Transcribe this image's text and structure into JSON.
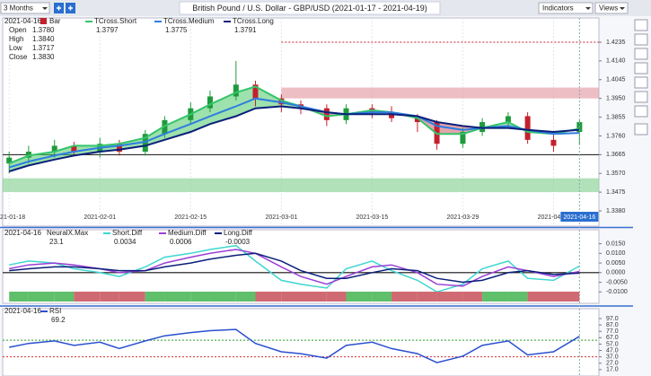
{
  "toolbar": {
    "range": "3 Months",
    "indicators": "Indicators",
    "views": "Views"
  },
  "chart_data": [
    {
      "type": "candlestick",
      "title": "British Pound / U.S. Dollar - GBP/USD (2021-01-17 - 2021-04-19)",
      "cursor_date": "2021-04-16",
      "x": [
        "2021-01-18",
        "2021-01-21",
        "2021-01-25",
        "2021-01-28",
        "2021-02-01",
        "2021-02-04",
        "2021-02-08",
        "2021-02-11",
        "2021-02-15",
        "2021-02-18",
        "2021-02-22",
        "2021-02-25",
        "2021-03-01",
        "2021-03-04",
        "2021-03-08",
        "2021-03-11",
        "2021-03-15",
        "2021-03-18",
        "2021-03-22",
        "2021-03-25",
        "2021-03-29",
        "2021-04-01",
        "2021-04-05",
        "2021-04-08",
        "2021-04-12",
        "2021-04-16"
      ],
      "xlim": [
        "2021-01-17",
        "2021-04-19"
      ],
      "xticks": [
        "2021-01-18",
        "2021-02-01",
        "2021-02-15",
        "2021-03-01",
        "2021-03-15",
        "2021-03-29",
        "2021-04-12"
      ],
      "ylim": [
        1.338,
        1.4335
      ],
      "yticks": [
        {
          "value": 1.338,
          "label": "1.3380"
        },
        1.3475,
        {
          "value": 1.357,
          "label": "1.3570"
        },
        1.3665,
        {
          "value": 1.376,
          "label": "1.3760"
        },
        1.3855,
        {
          "value": 1.395,
          "label": "1.3950"
        },
        1.4045,
        {
          "value": 1.414,
          "label": "1.4140"
        },
        1.4235
      ],
      "grid": true,
      "ohlc": {
        "name": "Bar",
        "up_color": "#1e9b3c",
        "down_color": "#c4202c",
        "open": [
          1.362,
          1.365,
          1.368,
          1.371,
          1.368,
          1.372,
          1.368,
          1.377,
          1.384,
          1.39,
          1.396,
          1.402,
          1.395,
          1.392,
          1.39,
          1.384,
          1.39,
          1.388,
          1.385,
          1.383,
          1.372,
          1.378,
          1.383,
          1.386,
          1.374,
          1.378
        ],
        "high": [
          1.368,
          1.371,
          1.374,
          1.373,
          1.375,
          1.374,
          1.379,
          1.386,
          1.393,
          1.399,
          1.414,
          1.404,
          1.397,
          1.394,
          1.392,
          1.392,
          1.392,
          1.391,
          1.387,
          1.384,
          1.38,
          1.385,
          1.388,
          1.388,
          1.378,
          1.384
        ],
        "low": [
          1.357,
          1.362,
          1.365,
          1.366,
          1.365,
          1.366,
          1.366,
          1.375,
          1.382,
          1.388,
          1.394,
          1.391,
          1.388,
          1.387,
          1.381,
          1.382,
          1.385,
          1.383,
          1.378,
          1.369,
          1.37,
          1.376,
          1.381,
          1.372,
          1.368,
          1.3717
        ],
        "close": [
          1.365,
          1.368,
          1.371,
          1.368,
          1.372,
          1.368,
          1.377,
          1.384,
          1.39,
          1.396,
          1.402,
          1.395,
          1.392,
          1.39,
          1.384,
          1.39,
          1.388,
          1.385,
          1.383,
          1.372,
          1.378,
          1.383,
          1.386,
          1.374,
          1.371,
          1.383
        ]
      },
      "readout": {
        "labels": [
          "Open",
          "High",
          "Low",
          "Close"
        ],
        "values": [
          1.378,
          1.384,
          1.3717,
          1.383
        ],
        "value_labels": [
          "1.3780",
          "1.3840",
          "1.3717",
          "1.3830"
        ]
      },
      "series": [
        {
          "name": "TCross.Short",
          "color": "#35c46a",
          "values": [
            1.362,
            1.366,
            1.368,
            1.371,
            1.371,
            1.372,
            1.375,
            1.381,
            1.387,
            1.392,
            1.398,
            1.401,
            1.394,
            1.391,
            1.386,
            1.387,
            1.389,
            1.388,
            1.385,
            1.377,
            1.377,
            1.38,
            1.383,
            1.378,
            1.377,
            1.3797
          ]
        },
        {
          "name": "TCross.Medium",
          "color": "#2f7de0",
          "values": [
            1.36,
            1.363,
            1.366,
            1.368,
            1.37,
            1.371,
            1.373,
            1.377,
            1.382,
            1.386,
            1.391,
            1.395,
            1.393,
            1.391,
            1.388,
            1.387,
            1.388,
            1.388,
            1.386,
            1.381,
            1.379,
            1.38,
            1.381,
            1.379,
            1.377,
            1.3775
          ]
        },
        {
          "name": "TCross.Long",
          "color": "#0a1f7a",
          "values": [
            1.358,
            1.361,
            1.364,
            1.366,
            1.368,
            1.369,
            1.371,
            1.374,
            1.378,
            1.382,
            1.386,
            1.39,
            1.391,
            1.39,
            1.388,
            1.387,
            1.387,
            1.387,
            1.386,
            1.383,
            1.381,
            1.38,
            1.38,
            1.379,
            1.378,
            1.3791
          ]
        }
      ],
      "zones": [
        {
          "from": 1.395,
          "to": 1.4005,
          "start": "2021-03-01",
          "color": "#e6a3ab"
        },
        {
          "from": 1.3475,
          "to": 1.3545,
          "start": "2021-01-17",
          "color": "#8fd49a"
        }
      ],
      "lines": [
        {
          "value": 1.4235,
          "start": "2021-03-01",
          "color": "#c4202c",
          "dash": true
        },
        {
          "value": 1.3665,
          "start": "2021-01-17",
          "color": "#111111",
          "dash": false
        }
      ]
    },
    {
      "type": "line",
      "neuralx": {
        "name": "NeuralX.Max",
        "value": 23.1
      },
      "ylim": [
        -0.015,
        0.019
      ],
      "yticks": [
        {
          "value": 0.015,
          "label": "0.0150"
        },
        {
          "value": 0.01,
          "label": "0.0100"
        },
        {
          "value": 0.005,
          "label": "0.0050"
        },
        {
          "value": 0,
          "label": "0.0000"
        },
        {
          "value": -0.005,
          "label": "-0.0050"
        },
        {
          "value": -0.01,
          "label": "-0.0100"
        }
      ],
      "series": [
        {
          "name": "Short.Diff",
          "color": "#3fd6d0",
          "values": [
            0.004,
            0.006,
            0.005,
            0.002,
            0.0,
            -0.002,
            0.003,
            0.008,
            0.01,
            0.012,
            0.014,
            0.006,
            -0.004,
            -0.006,
            -0.008,
            0.002,
            0.006,
            0.001,
            -0.004,
            -0.01,
            -0.006,
            0.002,
            0.006,
            -0.003,
            -0.004,
            0.0034
          ]
        },
        {
          "name": "Medium.Diff",
          "color": "#9a3fd6",
          "values": [
            0.002,
            0.004,
            0.005,
            0.004,
            0.002,
            0.0,
            0.001,
            0.005,
            0.008,
            0.01,
            0.012,
            0.01,
            0.003,
            -0.002,
            -0.006,
            -0.002,
            0.003,
            0.004,
            0.0,
            -0.006,
            -0.007,
            -0.002,
            0.003,
            0.001,
            -0.002,
            0.0006
          ]
        },
        {
          "name": "Long.Diff",
          "color": "#0a1f7a",
          "values": [
            0.001,
            0.002,
            0.003,
            0.003,
            0.002,
            0.001,
            0.001,
            0.003,
            0.005,
            0.007,
            0.009,
            0.01,
            0.006,
            0.001,
            -0.003,
            -0.003,
            0.0,
            0.002,
            0.001,
            -0.003,
            -0.005,
            -0.004,
            0.0,
            0.001,
            -0.001,
            -0.0003
          ]
        }
      ]
    },
    {
      "type": "line",
      "ylim": [
        7,
        104
      ],
      "yticks": [
        {
          "value": 97,
          "label": "97.0"
        },
        {
          "value": 87,
          "label": "87.0"
        },
        {
          "value": 77,
          "label": "77.0"
        },
        {
          "value": 67,
          "label": "67.0"
        },
        {
          "value": 57,
          "label": "57.0"
        },
        {
          "value": 47,
          "label": "47.0"
        },
        {
          "value": 37,
          "label": "37.0"
        },
        {
          "value": 27,
          "label": "27.0"
        },
        {
          "value": 17,
          "label": "17.0"
        }
      ],
      "levels": [
        {
          "value": 63,
          "color": "#2a9d2a"
        },
        {
          "value": 37,
          "color": "#d03030"
        }
      ],
      "series": [
        {
          "name": "RSI",
          "color": "#2a4fd0",
          "values": [
            52,
            58,
            62,
            55,
            60,
            50,
            62,
            70,
            75,
            78,
            80,
            58,
            45,
            42,
            35,
            55,
            60,
            50,
            42,
            28,
            38,
            55,
            62,
            40,
            45,
            69.2
          ]
        }
      ]
    }
  ]
}
